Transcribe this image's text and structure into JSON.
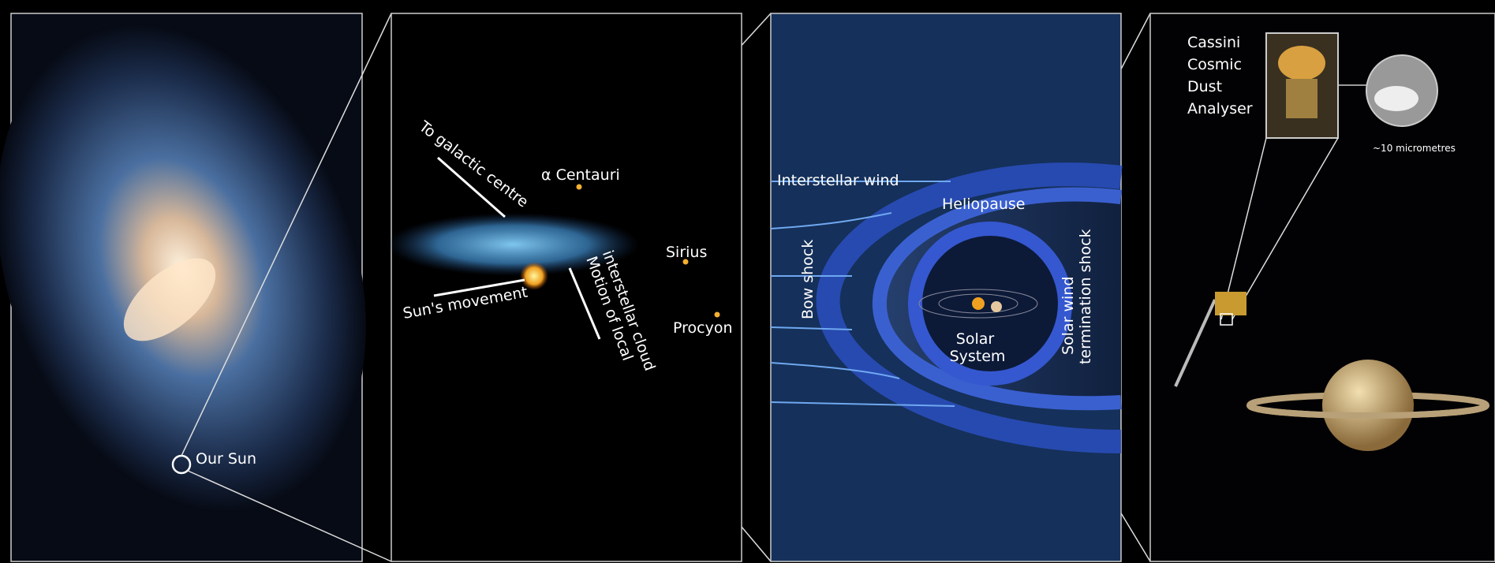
{
  "panels": [
    {
      "labels": {
        "sun": "Our Sun"
      }
    },
    {
      "labels": {
        "galactic_centre": "To galactic centre",
        "alpha_centauri": "α Centauri",
        "sirius": "Sirius",
        "procyon": "Procyon",
        "sun_movement": "Sun's movement",
        "cloud_motion": [
          "Motion of local",
          "interstellar cloud"
        ]
      }
    },
    {
      "labels": {
        "interstellar_wind": "Interstellar wind",
        "heliopause": "Heliopause",
        "bow_shock": "Bow shock",
        "solar_system": [
          "Solar",
          "System"
        ],
        "termination_shock": [
          "Solar wind",
          "termination shock"
        ]
      }
    },
    {
      "labels": {
        "instrument": [
          "Cassini",
          "Cosmic",
          "Dust",
          "Analyser"
        ],
        "scale": "~10 micrometres"
      }
    }
  ]
}
